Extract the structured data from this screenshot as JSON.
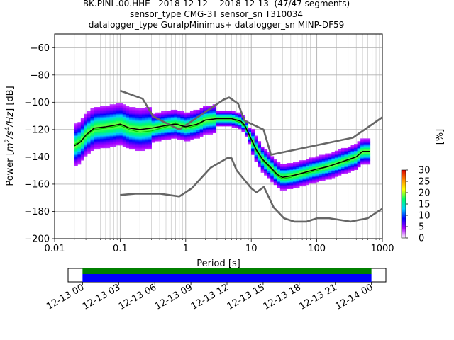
{
  "title_lines": [
    "BK.PINL.00.HHE   2018-12-12 -- 2018-12-13  (47/47 segments)",
    "sensor_type CMG-3T sensor_sn T310034",
    "datalogger_type GuralpMinimus+ datalogger_sn MINP-DF59"
  ],
  "chart_data": {
    "type": "heatmap",
    "xlabel": "Period [s]",
    "ylabel_parts": [
      "Power [",
      "m",
      "2",
      "/s",
      "4",
      "/Hz",
      "] [dB]"
    ],
    "xscale": "log",
    "xlim": [
      0.01,
      1000
    ],
    "ylim": [
      -200,
      -50
    ],
    "x_ticks": [
      {
        "value": 0.01,
        "label": "0.01"
      },
      {
        "value": 0.1,
        "label": "0.1"
      },
      {
        "value": 1,
        "label": "1"
      },
      {
        "value": 10,
        "label": "10"
      },
      {
        "value": 100,
        "label": "100"
      },
      {
        "value": 1000,
        "label": "1000"
      }
    ],
    "y_ticks": [
      {
        "value": -60,
        "label": "−60"
      },
      {
        "value": -80,
        "label": "−80"
      },
      {
        "value": -100,
        "label": "−100"
      },
      {
        "value": -120,
        "label": "−120"
      },
      {
        "value": -140,
        "label": "−140"
      },
      {
        "value": -160,
        "label": "−160"
      },
      {
        "value": -180,
        "label": "−180"
      },
      {
        "value": -200,
        "label": "−200"
      }
    ],
    "grid": true,
    "colorbar": {
      "label": "[%]",
      "range": [
        0,
        30
      ],
      "ticks": [
        {
          "value": 0,
          "label": "0"
        },
        {
          "value": 5,
          "label": "5"
        },
        {
          "value": 10,
          "label": "10"
        },
        {
          "value": 15,
          "label": "15"
        },
        {
          "value": 20,
          "label": "20"
        },
        {
          "value": 25,
          "label": "25"
        },
        {
          "value": 30,
          "label": "30"
        }
      ],
      "colors": [
        "#ffffff",
        "#aa00ff",
        "#0000ff",
        "#00d0ff",
        "#00ff66",
        "#ffff00",
        "#ff8800",
        "#dd0000"
      ]
    },
    "noise_model_high": {
      "period": [
        0.1,
        0.22,
        0.32,
        0.8,
        3.8,
        4.6,
        6.3,
        7.9,
        15.4,
        20,
        354.8,
        1000
      ],
      "db": [
        -91.5,
        -97.4,
        -110.5,
        -120,
        -98,
        -96.5,
        -101,
        -113.5,
        -120,
        -138.5,
        -126,
        -111
      ]
    },
    "noise_model_low": {
      "period": [
        0.1,
        0.17,
        0.4,
        0.8,
        1.24,
        2.4,
        4.3,
        5.0,
        6.0,
        10.0,
        12.0,
        15.6,
        21.9,
        31.6,
        45,
        70,
        101,
        154,
        328,
        600,
        1000
      ],
      "db": [
        -168,
        -167,
        -167,
        -169,
        -163,
        -148,
        -141,
        -141,
        -150,
        -163,
        -166,
        -162,
        -177,
        -185,
        -187.5,
        -187.5,
        -185,
        -185,
        -187.5,
        -185,
        -178
      ]
    },
    "median_curve": {
      "period": [
        0.02,
        0.025,
        0.03,
        0.04,
        0.06,
        0.08,
        0.1,
        0.14,
        0.2,
        0.3,
        0.5,
        0.7,
        1.0,
        1.5,
        2.0,
        3.0,
        4.0,
        5.0,
        6.0,
        7.0,
        8.0,
        10.0,
        12.0,
        15.0,
        20.0,
        25.0,
        30.0,
        40.0,
        50.0,
        70.0,
        100.0,
        150.0,
        200.0,
        300.0,
        400.0,
        500.0,
        650.0
      ],
      "db": [
        -132,
        -129,
        -124,
        -119,
        -118,
        -117,
        -116,
        -119,
        -120,
        -119,
        -117,
        -116,
        -118,
        -116,
        -113,
        -112,
        -112,
        -112,
        -113,
        -114,
        -117,
        -127,
        -135,
        -142,
        -148,
        -153,
        -155,
        -154,
        -153,
        -151,
        -149,
        -147,
        -145,
        -142,
        -140,
        -136,
        -136
      ]
    },
    "mode_curve": {
      "period": [
        0.02,
        0.025,
        0.03,
        0.04,
        0.06,
        0.08,
        0.1,
        0.14,
        0.2,
        0.3,
        0.5,
        0.7,
        1.0,
        1.5,
        2.0,
        3.0,
        4.0,
        5.0,
        6.0,
        7.0,
        8.0,
        10.0,
        12.0,
        15.0,
        20.0,
        25.0,
        30.0,
        40.0,
        50.0,
        70.0,
        100.0,
        150.0,
        200.0,
        300.0,
        400.0,
        500.0,
        650.0
      ],
      "db": [
        -131,
        -128,
        -125,
        -120,
        -119,
        -118,
        -117,
        -120,
        -122,
        -121,
        -118,
        -115,
        -119,
        -117,
        -113,
        -112,
        -112,
        -112,
        -114,
        -115,
        -118,
        -128,
        -136,
        -143,
        -149,
        -154,
        -156,
        -155,
        -153,
        -152,
        -150,
        -147,
        -145,
        -143,
        -140,
        -136,
        -136
      ]
    },
    "time_axis": {
      "ticks": [
        {
          "hours": 0,
          "label": "12-13 00"
        },
        {
          "hours": 3,
          "label": "12-13 03"
        },
        {
          "hours": 6,
          "label": "12-13 06"
        },
        {
          "hours": 9,
          "label": "12-13 09"
        },
        {
          "hours": 12,
          "label": "12-13 12"
        },
        {
          "hours": 15,
          "label": "12-13 15"
        },
        {
          "hours": 18,
          "label": "12-13 18"
        },
        {
          "hours": 21,
          "label": "12-13 21"
        },
        {
          "hours": 24,
          "label": "12-14 00"
        }
      ],
      "range_hours": [
        -1.2,
        25.2
      ],
      "coverage": {
        "start_hours": 0,
        "end_hours": 24
      },
      "colors": {
        "top": "#008000",
        "bottom": "#0000ff"
      }
    }
  }
}
